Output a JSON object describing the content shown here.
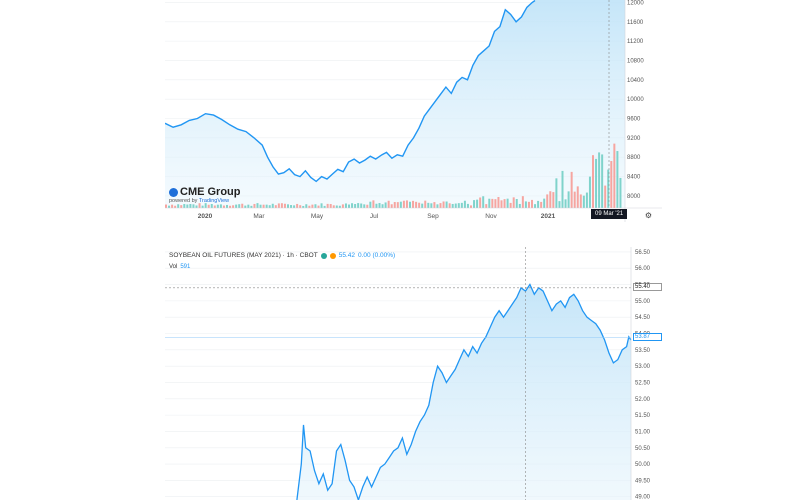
{
  "chart_data": [
    {
      "type": "area",
      "x_ticks": [
        "2020",
        "Mar",
        "May",
        "Jul",
        "Sep",
        "Nov",
        "2021"
      ],
      "y_ticks": [
        12000,
        11600,
        11200,
        10800,
        10400,
        10000,
        9600,
        9200,
        8800,
        8400,
        8000
      ],
      "ylim": [
        7750,
        12050
      ],
      "crosshair_label": "09 Mar '21",
      "price": [
        [
          0,
          9500
        ],
        [
          3,
          9420
        ],
        [
          6,
          9470
        ],
        [
          9,
          9560
        ],
        [
          12,
          9600
        ],
        [
          15,
          9700
        ],
        [
          18,
          9670
        ],
        [
          21,
          9580
        ],
        [
          24,
          9470
        ],
        [
          27,
          9380
        ],
        [
          30,
          9330
        ],
        [
          33,
          9200
        ],
        [
          36,
          9050
        ],
        [
          38,
          8800
        ],
        [
          40,
          8600
        ],
        [
          42,
          8450
        ],
        [
          44,
          8480
        ],
        [
          46,
          8560
        ],
        [
          48,
          8440
        ],
        [
          50,
          8400
        ],
        [
          52,
          8520
        ],
        [
          54,
          8380
        ],
        [
          56,
          8300
        ],
        [
          58,
          8400
        ],
        [
          60,
          8350
        ],
        [
          62,
          8450
        ],
        [
          64,
          8550
        ],
        [
          66,
          8500
        ],
        [
          68,
          8700
        ],
        [
          70,
          8760
        ],
        [
          72,
          8680
        ],
        [
          74,
          8740
        ],
        [
          76,
          8820
        ],
        [
          78,
          8760
        ],
        [
          80,
          8840
        ],
        [
          82,
          8900
        ],
        [
          84,
          8780
        ],
        [
          86,
          8850
        ],
        [
          88,
          8820
        ],
        [
          90,
          9050
        ],
        [
          92,
          9200
        ],
        [
          94,
          9400
        ],
        [
          96,
          9650
        ],
        [
          98,
          9800
        ],
        [
          100,
          9950
        ],
        [
          102,
          10100
        ],
        [
          104,
          10250
        ],
        [
          106,
          10120
        ],
        [
          108,
          10350
        ],
        [
          110,
          10450
        ],
        [
          112,
          10400
        ],
        [
          114,
          10700
        ],
        [
          116,
          10900
        ],
        [
          118,
          11000
        ],
        [
          120,
          11100
        ],
        [
          122,
          11400
        ],
        [
          124,
          11500
        ],
        [
          126,
          11850
        ],
        [
          128,
          11750
        ],
        [
          130,
          11600
        ],
        [
          132,
          11700
        ],
        [
          134,
          11900
        ],
        [
          136,
          12000
        ],
        [
          137,
          12040
        ]
      ],
      "volume_scale": 400
    },
    {
      "type": "area",
      "title": "SOYBEAN OIL FUTURES (MAY 2021) · 1h · CBOT",
      "last_value": "55.42",
      "change": "0.00 (0.00%)",
      "vol_label": "Vol",
      "vol_value": "591",
      "y_ticks": [
        56.5,
        56.0,
        55.5,
        55.0,
        54.5,
        54.0,
        53.5,
        53.0,
        52.5,
        52.0,
        51.5,
        51.0,
        50.5,
        50.0,
        49.5,
        49.0
      ],
      "ylim": [
        48.9,
        56.65
      ],
      "crosshair_price": "55.40",
      "last_price": "53.87",
      "price": [
        [
          60,
          48.9
        ],
        [
          62,
          50.0
        ],
        [
          63,
          51.2
        ],
        [
          64,
          50.5
        ],
        [
          66,
          50.4
        ],
        [
          68,
          49.8
        ],
        [
          70,
          49.4
        ],
        [
          72,
          49.7
        ],
        [
          74,
          49.2
        ],
        [
          76,
          49.4
        ],
        [
          78,
          50.4
        ],
        [
          80,
          50.6
        ],
        [
          82,
          50.1
        ],
        [
          84,
          49.5
        ],
        [
          86,
          49.3
        ],
        [
          88,
          48.9
        ],
        [
          90,
          49.3
        ],
        [
          92,
          49.6
        ],
        [
          94,
          49.3
        ],
        [
          96,
          49.6
        ],
        [
          98,
          49.9
        ],
        [
          100,
          50.0
        ],
        [
          102,
          50.2
        ],
        [
          104,
          50.4
        ],
        [
          106,
          50.5
        ],
        [
          108,
          50.8
        ],
        [
          110,
          50.3
        ],
        [
          112,
          50.6
        ],
        [
          114,
          51.0
        ],
        [
          116,
          51.3
        ],
        [
          118,
          51.5
        ],
        [
          120,
          51.8
        ],
        [
          122,
          52.5
        ],
        [
          124,
          53.0
        ],
        [
          126,
          52.8
        ],
        [
          128,
          52.5
        ],
        [
          130,
          52.7
        ],
        [
          132,
          52.9
        ],
        [
          134,
          53.2
        ],
        [
          136,
          53.5
        ],
        [
          138,
          53.3
        ],
        [
          140,
          53.6
        ],
        [
          142,
          53.4
        ],
        [
          144,
          53.7
        ],
        [
          146,
          53.9
        ],
        [
          148,
          54.2
        ],
        [
          150,
          54.5
        ],
        [
          152,
          54.7
        ],
        [
          154,
          54.5
        ],
        [
          156,
          54.7
        ],
        [
          158,
          54.9
        ],
        [
          160,
          55.1
        ],
        [
          162,
          55.4
        ],
        [
          164,
          55.3
        ],
        [
          166,
          55.5
        ],
        [
          168,
          55.2
        ],
        [
          170,
          55.4
        ],
        [
          172,
          55.3
        ],
        [
          174,
          55.0
        ],
        [
          176,
          54.7
        ],
        [
          178,
          54.9
        ],
        [
          180,
          55.0
        ],
        [
          182,
          54.8
        ],
        [
          184,
          55.1
        ],
        [
          186,
          55.2
        ],
        [
          188,
          55.0
        ],
        [
          190,
          54.7
        ],
        [
          192,
          54.5
        ],
        [
          194,
          54.4
        ],
        [
          196,
          54.3
        ],
        [
          198,
          54.1
        ],
        [
          200,
          53.8
        ],
        [
          202,
          53.4
        ],
        [
          204,
          53.1
        ],
        [
          206,
          53.2
        ],
        [
          208,
          53.5
        ],
        [
          210,
          53.6
        ],
        [
          211,
          53.9
        ],
        [
          212,
          53.8
        ]
      ]
    }
  ],
  "branding": {
    "logo_text": "CME Group",
    "powered_prefix": "powered by ",
    "powered_brand": "TradingView"
  }
}
